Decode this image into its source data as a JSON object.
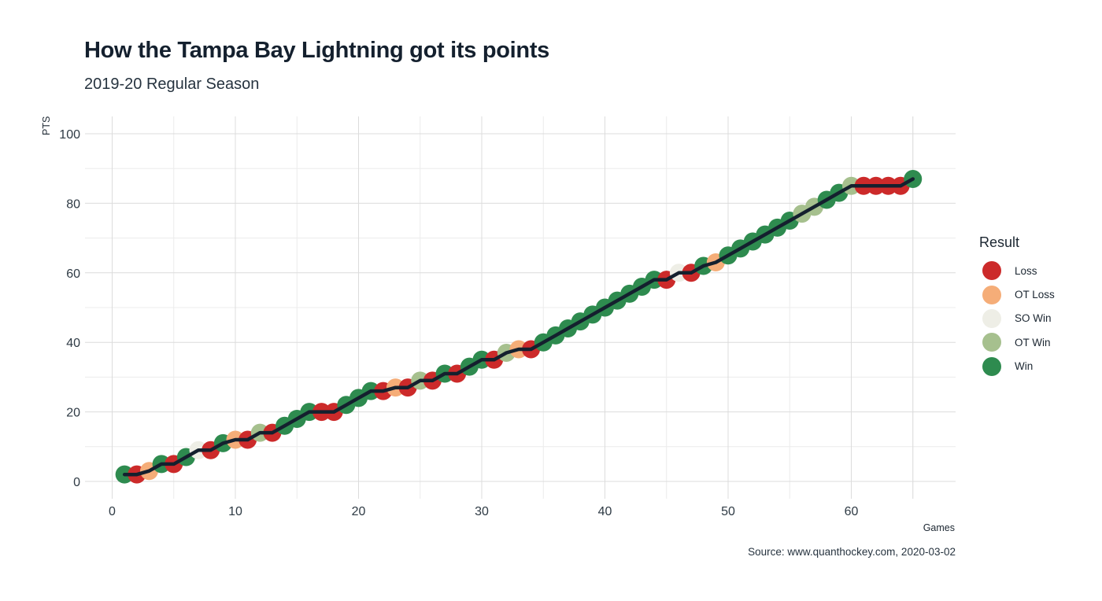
{
  "title": "How the Tampa Bay Lightning got its points",
  "subtitle": "2019-20 Regular Season",
  "source": "Source: www.quanthockey.com, 2020-03-02",
  "colors": {
    "Loss": "#cc2a2a",
    "OT Loss": "#f5ad78",
    "SO Win": "#eeeee6",
    "OT Win": "#a6c08e",
    "Win": "#2e8b4f",
    "line": "#14202e"
  },
  "legend": {
    "title": "Result",
    "items": [
      "Loss",
      "OT Loss",
      "SO Win",
      "OT Win",
      "Win"
    ]
  },
  "chart_data": {
    "type": "scatter",
    "title": "How the Tampa Bay Lightning got its points",
    "subtitle": "2019-20 Regular Season",
    "xlabel": "Games",
    "ylabel": "PTS",
    "xlim": [
      0,
      68
    ],
    "ylim": [
      0,
      100
    ],
    "x_ticks": [
      0,
      10,
      20,
      30,
      40,
      50,
      60
    ],
    "y_ticks": [
      0,
      20,
      40,
      60,
      80,
      100
    ],
    "grid": true,
    "legend_position": "right",
    "points": [
      {
        "game": 1,
        "pts": 2,
        "result": "Win"
      },
      {
        "game": 2,
        "pts": 2,
        "result": "Loss"
      },
      {
        "game": 3,
        "pts": 3,
        "result": "OT Loss"
      },
      {
        "game": 4,
        "pts": 5,
        "result": "Win"
      },
      {
        "game": 5,
        "pts": 5,
        "result": "Loss"
      },
      {
        "game": 6,
        "pts": 7,
        "result": "Win"
      },
      {
        "game": 7,
        "pts": 9,
        "result": "SO Win"
      },
      {
        "game": 8,
        "pts": 9,
        "result": "Loss"
      },
      {
        "game": 9,
        "pts": 11,
        "result": "Win"
      },
      {
        "game": 10,
        "pts": 12,
        "result": "OT Loss"
      },
      {
        "game": 11,
        "pts": 12,
        "result": "Loss"
      },
      {
        "game": 12,
        "pts": 14,
        "result": "OT Win"
      },
      {
        "game": 13,
        "pts": 14,
        "result": "Loss"
      },
      {
        "game": 14,
        "pts": 16,
        "result": "Win"
      },
      {
        "game": 15,
        "pts": 18,
        "result": "Win"
      },
      {
        "game": 16,
        "pts": 20,
        "result": "Win"
      },
      {
        "game": 17,
        "pts": 20,
        "result": "Loss"
      },
      {
        "game": 18,
        "pts": 20,
        "result": "Loss"
      },
      {
        "game": 19,
        "pts": 22,
        "result": "Win"
      },
      {
        "game": 20,
        "pts": 24,
        "result": "Win"
      },
      {
        "game": 21,
        "pts": 26,
        "result": "Win"
      },
      {
        "game": 22,
        "pts": 26,
        "result": "Loss"
      },
      {
        "game": 23,
        "pts": 27,
        "result": "OT Loss"
      },
      {
        "game": 24,
        "pts": 27,
        "result": "Loss"
      },
      {
        "game": 25,
        "pts": 29,
        "result": "OT Win"
      },
      {
        "game": 26,
        "pts": 29,
        "result": "Loss"
      },
      {
        "game": 27,
        "pts": 31,
        "result": "Win"
      },
      {
        "game": 28,
        "pts": 31,
        "result": "Loss"
      },
      {
        "game": 29,
        "pts": 33,
        "result": "Win"
      },
      {
        "game": 30,
        "pts": 35,
        "result": "Win"
      },
      {
        "game": 31,
        "pts": 35,
        "result": "Loss"
      },
      {
        "game": 32,
        "pts": 37,
        "result": "OT Win"
      },
      {
        "game": 33,
        "pts": 38,
        "result": "OT Loss"
      },
      {
        "game": 34,
        "pts": 38,
        "result": "Loss"
      },
      {
        "game": 35,
        "pts": 40,
        "result": "Win"
      },
      {
        "game": 36,
        "pts": 42,
        "result": "Win"
      },
      {
        "game": 37,
        "pts": 44,
        "result": "Win"
      },
      {
        "game": 38,
        "pts": 46,
        "result": "Win"
      },
      {
        "game": 39,
        "pts": 48,
        "result": "Win"
      },
      {
        "game": 40,
        "pts": 50,
        "result": "Win"
      },
      {
        "game": 41,
        "pts": 52,
        "result": "Win"
      },
      {
        "game": 42,
        "pts": 54,
        "result": "Win"
      },
      {
        "game": 43,
        "pts": 56,
        "result": "Win"
      },
      {
        "game": 44,
        "pts": 58,
        "result": "Win"
      },
      {
        "game": 45,
        "pts": 58,
        "result": "Loss"
      },
      {
        "game": 46,
        "pts": 60,
        "result": "SO Win"
      },
      {
        "game": 47,
        "pts": 60,
        "result": "Loss"
      },
      {
        "game": 48,
        "pts": 62,
        "result": "Win"
      },
      {
        "game": 49,
        "pts": 63,
        "result": "OT Loss"
      },
      {
        "game": 50,
        "pts": 65,
        "result": "Win"
      },
      {
        "game": 51,
        "pts": 67,
        "result": "Win"
      },
      {
        "game": 52,
        "pts": 69,
        "result": "Win"
      },
      {
        "game": 53,
        "pts": 71,
        "result": "Win"
      },
      {
        "game": 54,
        "pts": 73,
        "result": "Win"
      },
      {
        "game": 55,
        "pts": 75,
        "result": "Win"
      },
      {
        "game": 56,
        "pts": 77,
        "result": "OT Win"
      },
      {
        "game": 57,
        "pts": 79,
        "result": "OT Win"
      },
      {
        "game": 58,
        "pts": 81,
        "result": "Win"
      },
      {
        "game": 59,
        "pts": 83,
        "result": "Win"
      },
      {
        "game": 60,
        "pts": 85,
        "result": "OT Win"
      },
      {
        "game": 61,
        "pts": 85,
        "result": "Loss"
      },
      {
        "game": 62,
        "pts": 85,
        "result": "Loss"
      },
      {
        "game": 63,
        "pts": 85,
        "result": "Loss"
      },
      {
        "game": 64,
        "pts": 85,
        "result": "Loss"
      },
      {
        "game": 65,
        "pts": 87,
        "result": "Win"
      }
    ]
  }
}
